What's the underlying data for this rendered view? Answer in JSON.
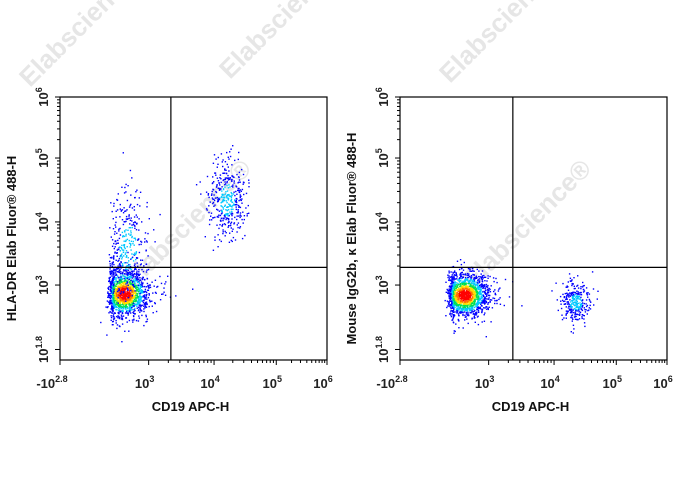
{
  "watermark": "Elabscience®",
  "colors": {
    "density": [
      "#0000ff",
      "#00c8ff",
      "#00e050",
      "#ffe000",
      "#ff7000",
      "#ff0000"
    ],
    "gate": "#000000",
    "frame": "#000000"
  },
  "chart_data": [
    {
      "type": "scatter",
      "subtype": "flow-cytometry-density-dot-plot",
      "xlabel": "CD19 APC-H",
      "ylabel": "HLA-DR Elab Fluor® 488-H",
      "xscale": "biexponential",
      "yscale": "log",
      "xticks": [
        {
          "base": "-10",
          "exp": "2.8"
        },
        {
          "base": "10",
          "exp": "3"
        },
        {
          "base": "10",
          "exp": "4"
        },
        {
          "base": "10",
          "exp": "5"
        },
        {
          "base": "10",
          "exp": "6"
        }
      ],
      "yticks": [
        {
          "base": "10",
          "exp": "1.8"
        },
        {
          "base": "10",
          "exp": "3"
        },
        {
          "base": "10",
          "exp": "4"
        },
        {
          "base": "10",
          "exp": "5"
        },
        {
          "base": "10",
          "exp": "6"
        }
      ],
      "gate_log10": {
        "x": 3.34,
        "y": 3.28
      },
      "populations_log10": [
        {
          "x": 2.3,
          "y": 2.85,
          "sdx": 0.35,
          "sdy": 0.22,
          "events": 1400
        },
        {
          "x": 2.4,
          "y": 3.6,
          "sdx": 0.3,
          "sdy": 0.45,
          "events": 350
        },
        {
          "x": 4.2,
          "y": 4.35,
          "sdx": 0.15,
          "sdy": 0.3,
          "events": 400
        }
      ]
    },
    {
      "type": "scatter",
      "subtype": "flow-cytometry-density-dot-plot",
      "xlabel": "CD19 APC-H",
      "ylabel": "Mouse IgG2b, κ Elab Fluor® 488-H",
      "xscale": "biexponential",
      "yscale": "log",
      "xticks": [
        {
          "base": "-10",
          "exp": "2.8"
        },
        {
          "base": "10",
          "exp": "3"
        },
        {
          "base": "10",
          "exp": "4"
        },
        {
          "base": "10",
          "exp": "5"
        },
        {
          "base": "10",
          "exp": "6"
        }
      ],
      "yticks": [
        {
          "base": "10",
          "exp": "1.8"
        },
        {
          "base": "10",
          "exp": "3"
        },
        {
          "base": "10",
          "exp": "4"
        },
        {
          "base": "10",
          "exp": "5"
        },
        {
          "base": "10",
          "exp": "6"
        }
      ],
      "gate_log10": {
        "x": 3.37,
        "y": 3.28
      },
      "populations_log10": [
        {
          "x": 2.3,
          "y": 2.82,
          "sdx": 0.35,
          "sdy": 0.2,
          "events": 1500
        },
        {
          "x": 4.34,
          "y": 2.69,
          "sdx": 0.12,
          "sdy": 0.18,
          "events": 300
        }
      ]
    }
  ]
}
